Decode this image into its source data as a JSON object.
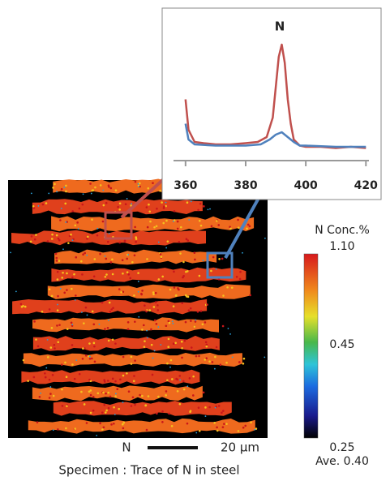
{
  "chart_data": {
    "type": "line",
    "title": "N",
    "xlim": [
      356,
      421
    ],
    "ylim": [
      0,
      100
    ],
    "xticks": [
      360,
      380,
      400,
      420
    ],
    "series": [
      {
        "name": null,
        "color": "#c0504d",
        "x": [
          360,
          361,
          363,
          366,
          370,
          375,
          380,
          384,
          387,
          389,
          390,
          391,
          392,
          393,
          394,
          395,
          396,
          398,
          400,
          405,
          410,
          415,
          420
        ],
        "values": [
          45,
          20,
          10,
          9,
          8,
          8,
          9,
          10,
          14,
          30,
          55,
          80,
          90,
          75,
          45,
          25,
          12,
          7,
          6,
          6,
          5,
          6,
          5
        ]
      },
      {
        "name": null,
        "color": "#4f81bd",
        "x": [
          360,
          361,
          363,
          370,
          380,
          385,
          388,
          390,
          392,
          394,
          396,
          398,
          400,
          410,
          420
        ],
        "values": [
          25,
          12,
          8,
          7,
          7,
          8,
          12,
          16,
          18,
          14,
          10,
          7,
          7,
          6,
          6
        ]
      }
    ]
  },
  "colorbar": {
    "label": "N Conc.%",
    "max": "1.10",
    "mid": "0.45",
    "min": "0.25",
    "average": "Ave. 0.40"
  },
  "scale_bar": {
    "element": "N",
    "length": "20 μm"
  },
  "caption": "Specimen : Trace of N in steel"
}
